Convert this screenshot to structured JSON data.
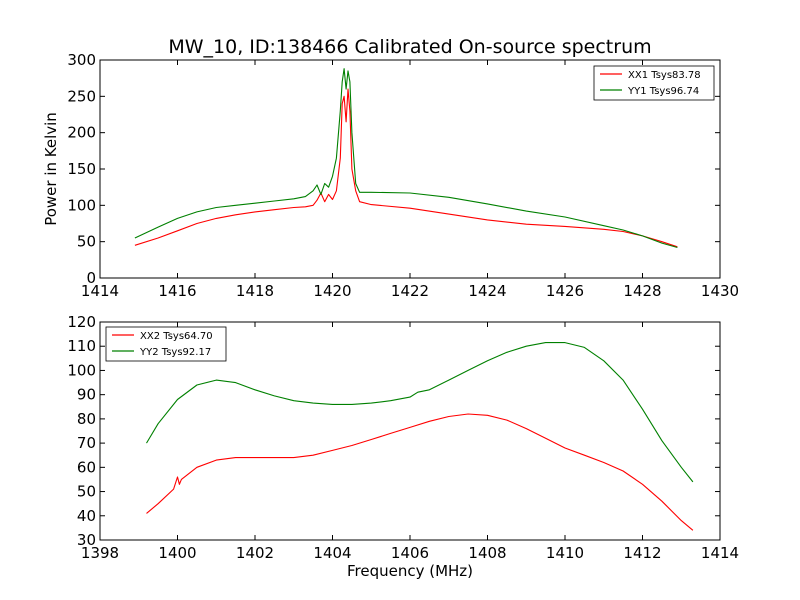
{
  "colors": {
    "red": "#ff0000",
    "green": "#008000"
  },
  "chart_data": [
    {
      "type": "line",
      "title": "MW_10, ID:138466 Calibrated On-source spectrum",
      "xlabel": "",
      "ylabel": "Power in Kelvin",
      "xlim": [
        1414,
        1430
      ],
      "ylim": [
        0,
        300
      ],
      "xticks": [
        1414,
        1416,
        1418,
        1420,
        1422,
        1424,
        1426,
        1428,
        1430
      ],
      "yticks": [
        0,
        50,
        100,
        150,
        200,
        250,
        300
      ],
      "grid": false,
      "legend": "top-right",
      "series": [
        {
          "name": "XX1 Tsys83.78",
          "color": "#ff0000",
          "x": [
            1414.9,
            1415.5,
            1416,
            1416.5,
            1417,
            1417.5,
            1418,
            1418.5,
            1419,
            1419.3,
            1419.5,
            1419.6,
            1419.7,
            1419.8,
            1419.9,
            1420.0,
            1420.1,
            1420.2,
            1420.25,
            1420.3,
            1420.35,
            1420.4,
            1420.45,
            1420.5,
            1420.6,
            1420.7,
            1421,
            1422,
            1423,
            1424,
            1425,
            1426,
            1427,
            1427.5,
            1428,
            1428.5,
            1428.9
          ],
          "y": [
            45,
            55,
            65,
            75,
            82,
            87,
            91,
            94,
            97,
            98,
            100,
            107,
            117,
            105,
            115,
            108,
            120,
            165,
            240,
            250,
            215,
            260,
            230,
            150,
            120,
            105,
            101,
            96,
            88,
            80,
            74,
            71,
            67,
            64,
            58,
            50,
            43
          ]
        },
        {
          "name": "YY1 Tsys96.74",
          "color": "#008000",
          "x": [
            1414.9,
            1415.5,
            1416,
            1416.5,
            1417,
            1417.5,
            1418,
            1418.5,
            1419,
            1419.3,
            1419.5,
            1419.6,
            1419.7,
            1419.8,
            1419.9,
            1420.0,
            1420.1,
            1420.2,
            1420.25,
            1420.3,
            1420.35,
            1420.4,
            1420.45,
            1420.5,
            1420.6,
            1420.7,
            1421,
            1422,
            1423,
            1424,
            1425,
            1426,
            1427,
            1427.5,
            1428,
            1428.5,
            1428.9
          ],
          "y": [
            55,
            70,
            82,
            91,
            97,
            100,
            103,
            106,
            109,
            112,
            120,
            128,
            115,
            130,
            125,
            140,
            165,
            230,
            270,
            288,
            260,
            285,
            270,
            200,
            130,
            118,
            118,
            117,
            111,
            102,
            92,
            84,
            72,
            66,
            58,
            48,
            42
          ]
        }
      ]
    },
    {
      "type": "line",
      "title": "",
      "xlabel": "Frequency (MHz)",
      "ylabel": "",
      "xlim": [
        1398,
        1414
      ],
      "ylim": [
        30,
        120
      ],
      "xticks": [
        1398,
        1400,
        1402,
        1404,
        1406,
        1408,
        1410,
        1412,
        1414
      ],
      "yticks": [
        30,
        40,
        50,
        60,
        70,
        80,
        90,
        100,
        110,
        120
      ],
      "grid": false,
      "legend": "top-left",
      "series": [
        {
          "name": "XX2 Tsys64.70",
          "color": "#ff0000",
          "x": [
            1399.2,
            1399.5,
            1399.9,
            1400.0,
            1400.05,
            1400.1,
            1400.5,
            1401,
            1401.5,
            1402,
            1402.5,
            1403,
            1403.5,
            1404,
            1404.5,
            1405,
            1405.5,
            1406,
            1406.5,
            1407,
            1407.5,
            1408,
            1408.5,
            1409,
            1409.5,
            1410,
            1410.5,
            1411,
            1411.5,
            1412,
            1412.5,
            1413,
            1413.3
          ],
          "y": [
            41,
            45,
            51,
            56,
            53,
            55,
            60,
            63,
            64,
            64,
            64,
            64,
            65,
            67,
            69,
            71.5,
            74,
            76.5,
            79,
            81,
            82,
            81.5,
            79.5,
            76,
            72,
            68,
            65,
            62,
            58.5,
            53,
            46,
            38,
            34
          ]
        },
        {
          "name": "YY2 Tsys92.17",
          "color": "#008000",
          "x": [
            1399.2,
            1399.5,
            1400,
            1400.5,
            1401,
            1401.5,
            1402,
            1402.5,
            1403,
            1403.5,
            1404,
            1404.5,
            1405,
            1405.5,
            1406,
            1406.2,
            1406.5,
            1407,
            1407.5,
            1408,
            1408.5,
            1409,
            1409.5,
            1410,
            1410.5,
            1411,
            1411.5,
            1412,
            1412.5,
            1413,
            1413.3
          ],
          "y": [
            70,
            78,
            88,
            94,
            96,
            95,
            92,
            89.5,
            87.5,
            86.5,
            86,
            86,
            86.5,
            87.5,
            89,
            91,
            92,
            96,
            100,
            104,
            107.5,
            110,
            111.5,
            111.5,
            109.5,
            104,
            96,
            84,
            71,
            60,
            54
          ]
        }
      ]
    }
  ]
}
